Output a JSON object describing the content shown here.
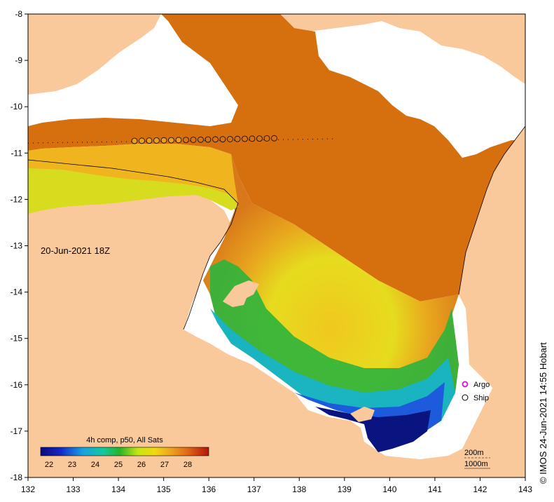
{
  "map": {
    "date_label": "20-Jun-2021 18Z",
    "credit": "© IMOS 24-Jun-2021 14:55 Hobart",
    "x_ticks": [
      "132",
      "133",
      "134",
      "135",
      "136",
      "137",
      "138",
      "139",
      "140",
      "141",
      "142",
      "143"
    ],
    "y_ticks": [
      "-8",
      "-9",
      "-10",
      "-11",
      "-12",
      "-13",
      "-14",
      "-15",
      "-16",
      "-17",
      "-18"
    ],
    "colorbar": {
      "title": "4h comp, p50, All Sats",
      "labels": [
        "22",
        "23",
        "24",
        "25",
        "26",
        "27",
        "28"
      ]
    },
    "legend": {
      "argo": "Argo",
      "ship": "Ship"
    },
    "contours": {
      "c200": "200m",
      "c1000": "1000m"
    },
    "colors": {
      "land": "#f9c89b",
      "nodata": "#ffffff",
      "sst_warm": "#c85a0a",
      "sst_orange": "#e89a1e",
      "sst_yellow": "#e6e61a",
      "sst_green": "#1eb44b",
      "sst_cyan": "#19b4d2",
      "sst_blue": "#1440c8",
      "sst_navy": "#0a1480"
    }
  }
}
